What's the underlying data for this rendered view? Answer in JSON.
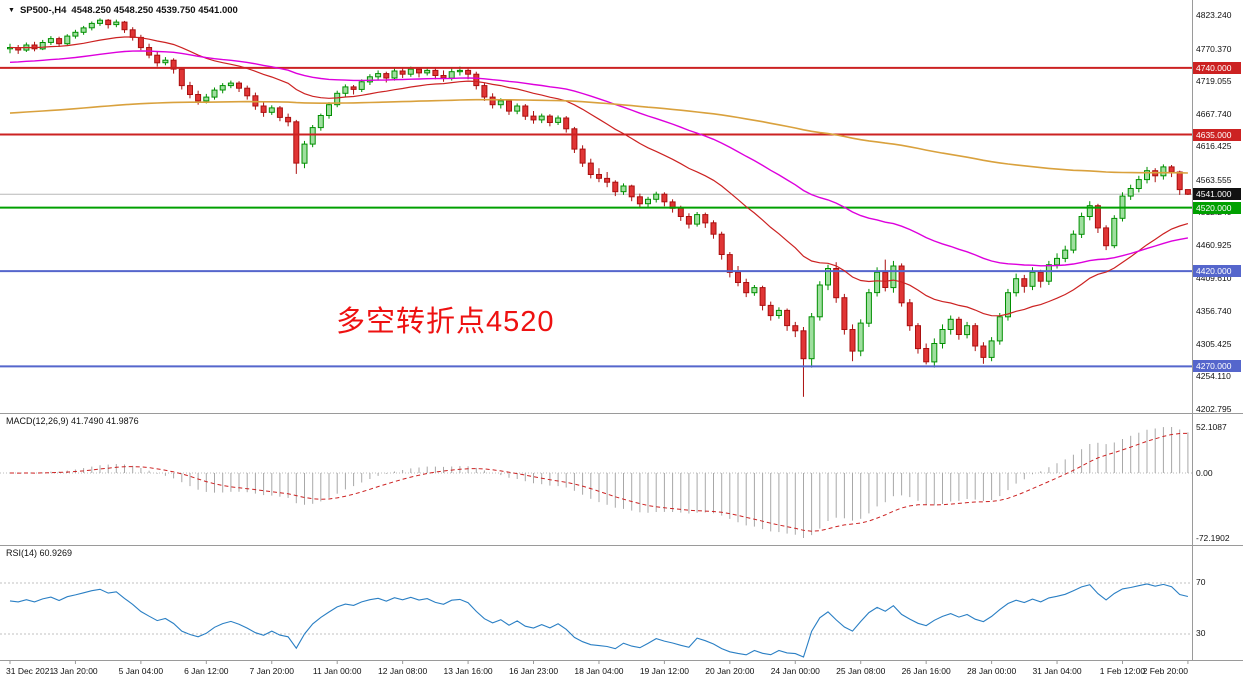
{
  "header": {
    "collapse_icon": "▼",
    "symbol": "SP500-,H4",
    "ohlc_text": "4548.250 4548.250 4539.750 4541.000"
  },
  "annotation": {
    "text": "多空转折点4520",
    "color": "#ee1111"
  },
  "panels": {
    "macd": {
      "label": "MACD(12,26,9) 41.7490 41.9876",
      "scale_max_label": "52.1087",
      "scale_zero_label": "0.00",
      "scale_min_label": "-72.1902"
    },
    "rsi": {
      "label": "RSI(14) 60.9269",
      "upper_label": "70",
      "lower_label": "30"
    }
  },
  "price_axis": {
    "ticks": [
      "4823.240",
      "4770.370",
      "4719.055",
      "4667.740",
      "4616.425",
      "4563.555",
      "4512.240",
      "4460.925",
      "4409.610",
      "4356.740",
      "4305.425",
      "4254.110",
      "4202.795"
    ],
    "badges": [
      {
        "text": "4740.000",
        "price": 4740.0,
        "bg": "#cc2222",
        "type": "resistance-4740"
      },
      {
        "text": "4635.000",
        "price": 4635.0,
        "bg": "#cc2222",
        "type": "resistance-4635"
      },
      {
        "text": "4541.000",
        "price": 4541.0,
        "bg": "#111111",
        "type": "last-price"
      },
      {
        "text": "4520.000",
        "price": 4520.0,
        "bg": "#00a000",
        "type": "pivot-4520"
      },
      {
        "text": "4420.000",
        "price": 4420.0,
        "bg": "#5566cc",
        "type": "support-4420"
      },
      {
        "text": "4270.000",
        "price": 4270.0,
        "bg": "#5566cc",
        "type": "support-4270"
      }
    ]
  },
  "time_axis": {
    "labels": [
      {
        "text": "31 Dec 2021",
        "bar": 0
      },
      {
        "text": "3 Jan 20:00",
        "bar": 8
      },
      {
        "text": "5 Jan 04:00",
        "bar": 16
      },
      {
        "text": "6 Jan 12:00",
        "bar": 24
      },
      {
        "text": "7 Jan 20:00",
        "bar": 32
      },
      {
        "text": "11 Jan 00:00",
        "bar": 40
      },
      {
        "text": "12 Jan 08:00",
        "bar": 48
      },
      {
        "text": "13 Jan 16:00",
        "bar": 56
      },
      {
        "text": "16 Jan 23:00",
        "bar": 64
      },
      {
        "text": "18 Jan 04:00",
        "bar": 72
      },
      {
        "text": "19 Jan 12:00",
        "bar": 80
      },
      {
        "text": "20 Jan 20:00",
        "bar": 88
      },
      {
        "text": "24 Jan 00:00",
        "bar": 96
      },
      {
        "text": "25 Jan 08:00",
        "bar": 104
      },
      {
        "text": "26 Jan 16:00",
        "bar": 112
      },
      {
        "text": "28 Jan 00:00",
        "bar": 120
      },
      {
        "text": "31 Jan 04:00",
        "bar": 128
      },
      {
        "text": "1 Feb 12:00",
        "bar": 136
      },
      {
        "text": "2 Feb 20:00",
        "bar": 144
      }
    ]
  },
  "chart_data": {
    "type": "candlestick",
    "title": "SP500-,H4",
    "timeframe": "H4",
    "last_ohlc": {
      "open": 4548.25,
      "high": 4548.25,
      "low": 4539.75,
      "close": 4541.0
    },
    "ylim": [
      4202.795,
      4823.24
    ],
    "annotation_text": "多空转折点4520",
    "up_color": {
      "fill": "#9fdf9f",
      "stroke": "#008f00"
    },
    "down_color": {
      "fill": "#e03535",
      "stroke": "#aa0f0f"
    },
    "horizontal_lines": [
      {
        "price": 4740.0,
        "color": "#cc2222",
        "width": 2
      },
      {
        "price": 4635.0,
        "color": "#cc2222",
        "width": 2
      },
      {
        "price": 4541.0,
        "color": "#b8b8b8",
        "width": 1,
        "role": "last-price-line"
      },
      {
        "price": 4520.0,
        "color": "#00a000",
        "width": 2
      },
      {
        "price": 4420.0,
        "color": "#5566cc",
        "width": 2
      },
      {
        "price": 4270.0,
        "color": "#5566cc",
        "width": 2
      }
    ],
    "moving_averages": [
      {
        "name": "fast-ma",
        "color": "#cc2222",
        "period": 25,
        "seed": 4772,
        "width": 1.2
      },
      {
        "name": "mid-ma",
        "color": "#dd00dd",
        "period": 60,
        "seed": 4748,
        "width": 1.4
      },
      {
        "name": "slow-ma",
        "color": "#d9a13d",
        "period": 250,
        "seed": 4668,
        "width": 1.6
      }
    ],
    "indicators": {
      "macd": {
        "params": [
          12,
          26,
          9
        ],
        "current": [
          41.749,
          41.9876
        ],
        "scale": [
          52.1087,
          0.0,
          -72.1902
        ],
        "histogram_color": "#a8a8a8",
        "signal_color": "#cc2222"
      },
      "rsi": {
        "period": 14,
        "current": 60.9269,
        "levels": [
          70,
          30
        ],
        "line_color": "#2a7fc4"
      }
    },
    "candles": [
      [
        4770,
        4778,
        4763,
        4772
      ],
      [
        4772,
        4776,
        4762,
        4768
      ],
      [
        4768,
        4780,
        4765,
        4776
      ],
      [
        4776,
        4781,
        4766,
        4770
      ],
      [
        4770,
        4784,
        4768,
        4780
      ],
      [
        4780,
        4790,
        4776,
        4786
      ],
      [
        4786,
        4789,
        4773,
        4778
      ],
      [
        4778,
        4793,
        4775,
        4790
      ],
      [
        4790,
        4800,
        4786,
        4796
      ],
      [
        4796,
        4806,
        4792,
        4803
      ],
      [
        4803,
        4813,
        4799,
        4810
      ],
      [
        4810,
        4818,
        4806,
        4815
      ],
      [
        4815,
        4817,
        4802,
        4808
      ],
      [
        4808,
        4816,
        4804,
        4812
      ],
      [
        4812,
        4814,
        4795,
        4800
      ],
      [
        4800,
        4804,
        4783,
        4788
      ],
      [
        4788,
        4792,
        4768,
        4772
      ],
      [
        4772,
        4778,
        4755,
        4760
      ],
      [
        4760,
        4766,
        4742,
        4748
      ],
      [
        4748,
        4757,
        4744,
        4752
      ],
      [
        4752,
        4755,
        4731,
        4738
      ],
      [
        4738,
        4741,
        4706,
        4712
      ],
      [
        4712,
        4718,
        4692,
        4698
      ],
      [
        4698,
        4704,
        4682,
        4688
      ],
      [
        4688,
        4699,
        4684,
        4694
      ],
      [
        4694,
        4709,
        4690,
        4705
      ],
      [
        4705,
        4716,
        4700,
        4712
      ],
      [
        4712,
        4720,
        4708,
        4716
      ],
      [
        4716,
        4719,
        4702,
        4708
      ],
      [
        4708,
        4712,
        4690,
        4696
      ],
      [
        4696,
        4701,
        4674,
        4680
      ],
      [
        4680,
        4686,
        4663,
        4670
      ],
      [
        4670,
        4681,
        4666,
        4677
      ],
      [
        4677,
        4680,
        4656,
        4662
      ],
      [
        4662,
        4668,
        4648,
        4655
      ],
      [
        4655,
        4658,
        4573,
        4590
      ],
      [
        4590,
        4625,
        4582,
        4620
      ],
      [
        4620,
        4650,
        4615,
        4646
      ],
      [
        4646,
        4668,
        4641,
        4665
      ],
      [
        4665,
        4686,
        4660,
        4682
      ],
      [
        4682,
        4704,
        4678,
        4700
      ],
      [
        4700,
        4714,
        4694,
        4710
      ],
      [
        4710,
        4713,
        4698,
        4706
      ],
      [
        4706,
        4722,
        4702,
        4718
      ],
      [
        4718,
        4730,
        4713,
        4726
      ],
      [
        4726,
        4736,
        4720,
        4731
      ],
      [
        4731,
        4734,
        4717,
        4724
      ],
      [
        4724,
        4739,
        4720,
        4735
      ],
      [
        4735,
        4740,
        4724,
        4730
      ],
      [
        4730,
        4742,
        4726,
        4738
      ],
      [
        4738,
        4741,
        4725,
        4732
      ],
      [
        4732,
        4740,
        4728,
        4736
      ],
      [
        4736,
        4739,
        4722,
        4728
      ],
      [
        4728,
        4736,
        4718,
        4724
      ],
      [
        4724,
        4740,
        4720,
        4734
      ],
      [
        4734,
        4742,
        4728,
        4736
      ],
      [
        4736,
        4741,
        4722,
        4730
      ],
      [
        4730,
        4734,
        4706,
        4712
      ],
      [
        4712,
        4716,
        4688,
        4694
      ],
      [
        4694,
        4700,
        4676,
        4682
      ],
      [
        4682,
        4692,
        4676,
        4688
      ],
      [
        4688,
        4691,
        4666,
        4672
      ],
      [
        4672,
        4684,
        4667,
        4680
      ],
      [
        4680,
        4683,
        4658,
        4664
      ],
      [
        4664,
        4672,
        4652,
        4658
      ],
      [
        4658,
        4668,
        4653,
        4664
      ],
      [
        4664,
        4667,
        4648,
        4654
      ],
      [
        4654,
        4665,
        4650,
        4661
      ],
      [
        4661,
        4664,
        4638,
        4644
      ],
      [
        4644,
        4647,
        4606,
        4612
      ],
      [
        4612,
        4618,
        4584,
        4590
      ],
      [
        4590,
        4597,
        4566,
        4572
      ],
      [
        4572,
        4582,
        4560,
        4566
      ],
      [
        4566,
        4576,
        4552,
        4560
      ],
      [
        4560,
        4563,
        4538,
        4545
      ],
      [
        4545,
        4558,
        4540,
        4554
      ],
      [
        4554,
        4556,
        4530,
        4537
      ],
      [
        4537,
        4542,
        4519,
        4526
      ],
      [
        4526,
        4537,
        4521,
        4533
      ],
      [
        4533,
        4545,
        4528,
        4541
      ],
      [
        4541,
        4544,
        4522,
        4529
      ],
      [
        4529,
        4533,
        4512,
        4519
      ],
      [
        4519,
        4523,
        4499,
        4506
      ],
      [
        4506,
        4511,
        4487,
        4494
      ],
      [
        4494,
        4513,
        4490,
        4509
      ],
      [
        4509,
        4512,
        4488,
        4496
      ],
      [
        4496,
        4500,
        4471,
        4478
      ],
      [
        4478,
        4482,
        4438,
        4446
      ],
      [
        4446,
        4450,
        4410,
        4418
      ],
      [
        4418,
        4428,
        4396,
        4402
      ],
      [
        4402,
        4408,
        4379,
        4386
      ],
      [
        4386,
        4398,
        4381,
        4394
      ],
      [
        4394,
        4397,
        4358,
        4366
      ],
      [
        4366,
        4372,
        4342,
        4350
      ],
      [
        4350,
        4363,
        4345,
        4358
      ],
      [
        4358,
        4361,
        4326,
        4334
      ],
      [
        4334,
        4340,
        4316,
        4326
      ],
      [
        4326,
        4332,
        4222,
        4282
      ],
      [
        4282,
        4354,
        4268,
        4348
      ],
      [
        4348,
        4404,
        4342,
        4398
      ],
      [
        4398,
        4430,
        4390,
        4424
      ],
      [
        4424,
        4434,
        4370,
        4378
      ],
      [
        4378,
        4384,
        4320,
        4328
      ],
      [
        4328,
        4336,
        4278,
        4294
      ],
      [
        4294,
        4344,
        4286,
        4338
      ],
      [
        4338,
        4392,
        4332,
        4386
      ],
      [
        4386,
        4426,
        4380,
        4418
      ],
      [
        4418,
        4438,
        4388,
        4394
      ],
      [
        4394,
        4436,
        4386,
        4428
      ],
      [
        4428,
        4432,
        4364,
        4370
      ],
      [
        4370,
        4376,
        4326,
        4334
      ],
      [
        4334,
        4338,
        4290,
        4298
      ],
      [
        4298,
        4306,
        4273,
        4277
      ],
      [
        4277,
        4314,
        4268,
        4306
      ],
      [
        4306,
        4336,
        4298,
        4328
      ],
      [
        4328,
        4350,
        4320,
        4344
      ],
      [
        4344,
        4348,
        4312,
        4320
      ],
      [
        4320,
        4340,
        4314,
        4334
      ],
      [
        4334,
        4338,
        4294,
        4302
      ],
      [
        4302,
        4308,
        4274,
        4284
      ],
      [
        4284,
        4316,
        4278,
        4310
      ],
      [
        4310,
        4354,
        4304,
        4348
      ],
      [
        4348,
        4392,
        4342,
        4386
      ],
      [
        4386,
        4416,
        4380,
        4408
      ],
      [
        4408,
        4414,
        4386,
        4396
      ],
      [
        4396,
        4426,
        4390,
        4418
      ],
      [
        4418,
        4422,
        4394,
        4404
      ],
      [
        4404,
        4436,
        4398,
        4430
      ],
      [
        4430,
        4448,
        4424,
        4440
      ],
      [
        4440,
        4460,
        4434,
        4453
      ],
      [
        4453,
        4484,
        4448,
        4478
      ],
      [
        4478,
        4512,
        4472,
        4506
      ],
      [
        4506,
        4530,
        4500,
        4523
      ],
      [
        4523,
        4526,
        4480,
        4488
      ],
      [
        4488,
        4492,
        4453,
        4460
      ],
      [
        4460,
        4508,
        4456,
        4503
      ],
      [
        4503,
        4544,
        4498,
        4538
      ],
      [
        4538,
        4556,
        4532,
        4550
      ],
      [
        4550,
        4570,
        4544,
        4564
      ],
      [
        4564,
        4584,
        4558,
        4578
      ],
      [
        4578,
        4582,
        4560,
        4570
      ],
      [
        4570,
        4588,
        4564,
        4584
      ],
      [
        4584,
        4587,
        4568,
        4576
      ],
      [
        4576,
        4578,
        4540,
        4548.25
      ],
      [
        4548.25,
        4548.25,
        4539.75,
        4541.0
      ]
    ]
  }
}
